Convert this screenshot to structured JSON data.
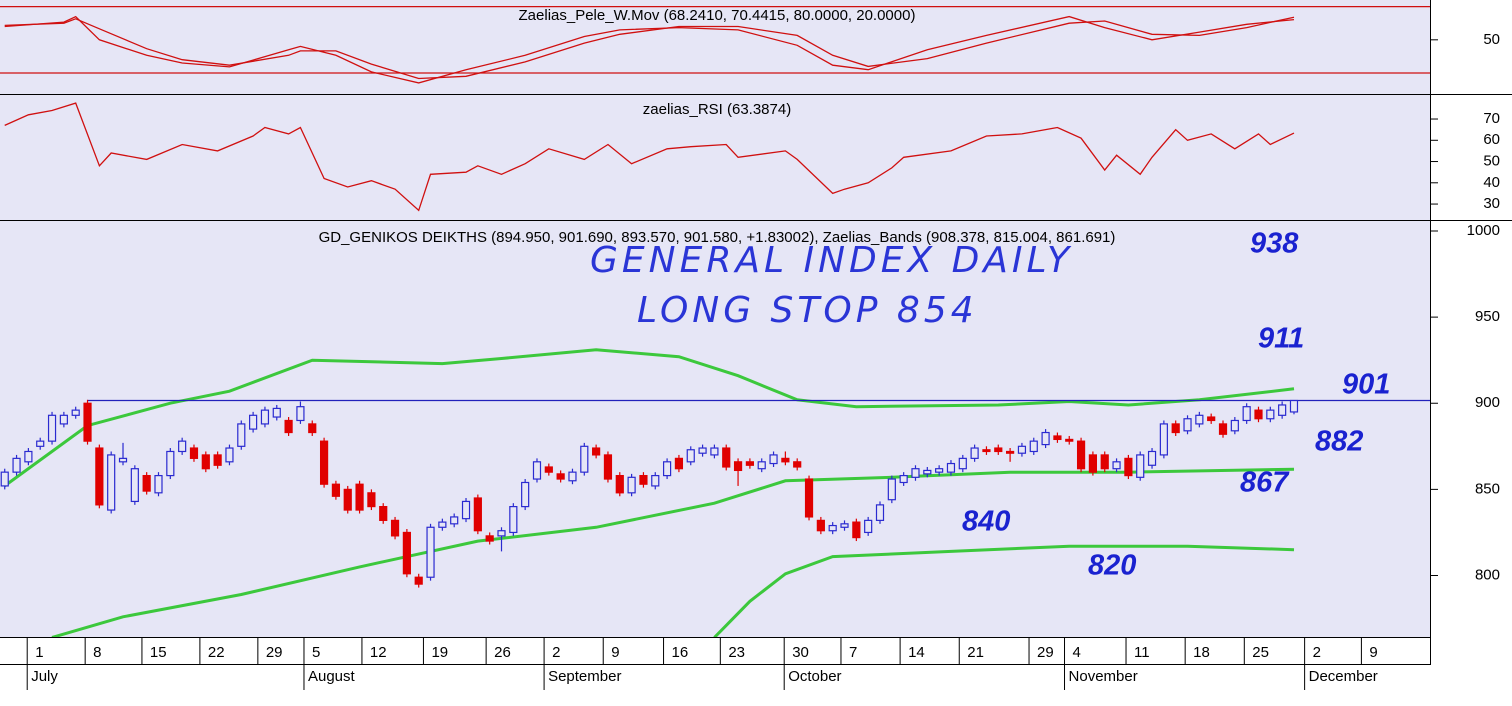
{
  "chart_data": [
    {
      "type": "line",
      "title": "Zaelias_Pele_W.Mov (68.2410, 70.4415, 80.0000, 20.0000)",
      "xlim": [
        -0.4,
        120.5
      ],
      "ylim": [
        1,
        86
      ],
      "yticks": [
        50
      ],
      "levels": [
        80,
        20
      ],
      "level_color": "#d01010",
      "series": [
        {
          "color": "#d01010",
          "x": [
            0,
            5,
            6,
            8,
            12,
            15,
            19,
            24,
            25,
            28,
            31,
            35,
            39,
            44,
            49,
            52,
            57,
            62,
            67,
            70,
            73,
            78,
            83,
            90,
            93,
            97,
            101,
            105,
            109
          ],
          "values": [
            62,
            66,
            71,
            50,
            36,
            29,
            25.5,
            41,
            44,
            36,
            21,
            11,
            23,
            36,
            53,
            59,
            61,
            59,
            45,
            27,
            23,
            41,
            54,
            71,
            61,
            50,
            57,
            64,
            68.241
          ]
        },
        {
          "color": "#d01010",
          "x": [
            0,
            5,
            6,
            8,
            12,
            15,
            19,
            24,
            25,
            28,
            31,
            35,
            39,
            44,
            49,
            52,
            57,
            62,
            67,
            70,
            73,
            78,
            83,
            90,
            93,
            97,
            101,
            105,
            109
          ],
          "values": [
            63,
            65,
            69,
            60,
            42,
            32,
            27,
            36,
            40,
            40,
            28,
            15,
            17,
            30,
            47,
            55,
            62,
            62,
            54,
            36,
            26,
            33,
            47,
            65,
            67,
            55,
            54,
            61,
            70.4415
          ]
        }
      ]
    },
    {
      "type": "line",
      "title": "zaelias_RSI (63.3874)",
      "xlim": [
        -0.4,
        120.5
      ],
      "ylim": [
        22.5,
        81.3
      ],
      "yticks": [
        30,
        40,
        50,
        60,
        70
      ],
      "series": [
        {
          "color": "#d01010",
          "x": [
            0,
            2,
            4,
            6,
            8,
            9,
            12,
            15,
            18,
            21,
            22,
            24,
            25,
            27,
            29,
            31,
            33,
            35,
            36,
            39,
            40,
            42,
            44,
            46,
            49,
            51,
            53,
            56,
            58,
            61,
            62,
            66,
            67,
            70,
            71,
            73,
            75,
            76,
            80,
            83,
            86,
            89,
            91,
            93,
            94,
            96,
            97,
            99,
            100,
            102,
            104,
            106,
            107,
            109
          ],
          "values": [
            67,
            72,
            74,
            77.5,
            48,
            54,
            51,
            58,
            55,
            62,
            66,
            63,
            66,
            42,
            38,
            41,
            37,
            27,
            44,
            45,
            48,
            44,
            49,
            56,
            51,
            58,
            49,
            56,
            57,
            58,
            52,
            55,
            51,
            35,
            37,
            40,
            47,
            52,
            55,
            62,
            63,
            66,
            61,
            46,
            53,
            44,
            52,
            65,
            60,
            63,
            56,
            63,
            58,
            63.3874
          ]
        }
      ]
    },
    {
      "type": "candlestick",
      "title": "GD_GENIKOS DEIKTHS (894.950, 901.690, 893.570, 901.580, +1.83002), Zaelias_Bands (908.378, 815.004, 861.691)",
      "xlim": [
        -0.4,
        120.5
      ],
      "ylim": [
        764.3,
        1005.8
      ],
      "yticks": [
        800,
        850,
        900,
        950,
        1000
      ],
      "up_color": "#2a2ad0",
      "down_color": "#e00000",
      "open": [
        852,
        860,
        866,
        875,
        878,
        888,
        893,
        900,
        874,
        838,
        866,
        843,
        858,
        848,
        858,
        872,
        874,
        870,
        870,
        866,
        875,
        885,
        888,
        892,
        890,
        890,
        888,
        878,
        853,
        850,
        853,
        848,
        840,
        832,
        825,
        799,
        799,
        828,
        830,
        833,
        845,
        823,
        823,
        825,
        840,
        856,
        863,
        859,
        855,
        860,
        874,
        870,
        858,
        848,
        858,
        852,
        858,
        868,
        866,
        871,
        870,
        874,
        866,
        866,
        862,
        865,
        868,
        866,
        856,
        832,
        826,
        828,
        831,
        825,
        832,
        844,
        854,
        857,
        859,
        860,
        860,
        862,
        868,
        873,
        874,
        872,
        871,
        872,
        876,
        881,
        879,
        878,
        870,
        870,
        862,
        868,
        857,
        864,
        870,
        888,
        884,
        888,
        892,
        888,
        884,
        890,
        896,
        891,
        893,
        894.95
      ],
      "high": [
        862,
        870,
        874,
        880,
        895,
        895,
        898,
        902,
        876,
        872,
        877,
        864,
        860,
        860,
        874,
        880,
        876,
        872,
        872,
        876,
        890,
        895,
        898,
        899,
        892,
        901,
        890,
        880,
        855,
        852,
        855,
        850,
        842,
        834,
        827,
        801,
        830,
        833,
        836,
        845,
        847,
        825,
        828,
        842,
        856,
        868,
        865,
        861,
        862,
        877,
        876,
        872,
        860,
        859,
        860,
        860,
        868,
        870,
        875,
        876,
        876,
        876,
        868,
        868,
        868,
        872,
        872,
        868,
        858,
        834,
        831,
        832,
        833,
        834,
        843,
        858,
        860,
        864,
        863,
        864,
        867,
        870,
        876,
        875,
        876,
        874,
        877,
        880,
        885,
        883,
        881,
        880,
        872,
        872,
        868,
        870,
        872,
        874,
        890,
        890,
        893,
        895,
        894,
        890,
        892,
        900,
        898,
        898,
        901,
        901.69
      ],
      "low": [
        850,
        858,
        864,
        873,
        876,
        886,
        891,
        876,
        839,
        836,
        864,
        841,
        847,
        846,
        856,
        870,
        866,
        860,
        862,
        864,
        873,
        883,
        886,
        890,
        881,
        888,
        881,
        851,
        844,
        836,
        836,
        838,
        830,
        821,
        799,
        793,
        797,
        826,
        828,
        831,
        824,
        818,
        814,
        823,
        838,
        854,
        858,
        854,
        853,
        858,
        868,
        854,
        846,
        846,
        851,
        850,
        856,
        860,
        864,
        869,
        868,
        861,
        852,
        862,
        860,
        863,
        864,
        861,
        832,
        824,
        824,
        826,
        820,
        823,
        830,
        842,
        852,
        855,
        857,
        858,
        858,
        860,
        866,
        870,
        870,
        866,
        869,
        870,
        874,
        877,
        876,
        860,
        858,
        860,
        860,
        856,
        855,
        862,
        868,
        881,
        882,
        886,
        888,
        880,
        882,
        888,
        889,
        889,
        891,
        893.57
      ],
      "close": [
        860,
        868,
        872,
        878,
        893,
        893,
        896,
        878,
        841,
        870,
        868,
        862,
        849,
        858,
        872,
        878,
        868,
        862,
        864,
        874,
        888,
        893,
        896,
        897,
        883,
        898,
        883,
        853,
        846,
        838,
        838,
        840,
        832,
        823,
        801,
        795,
        828,
        831,
        834,
        843,
        826,
        820,
        826,
        840,
        854,
        866,
        860,
        856,
        860,
        875,
        870,
        856,
        848,
        857,
        853,
        858,
        866,
        862,
        873,
        874,
        874,
        863,
        861,
        864,
        866,
        870,
        866,
        863,
        834,
        826,
        829,
        830,
        822,
        832,
        841,
        856,
        858,
        862,
        861,
        862,
        865,
        868,
        874,
        872,
        872,
        871,
        875,
        878,
        883,
        879,
        878,
        862,
        860,
        862,
        866,
        858,
        870,
        872,
        888,
        883,
        891,
        893,
        890,
        882,
        890,
        898,
        891,
        896,
        899,
        901.58
      ],
      "bands": [
        {
          "color": "#3cc83c",
          "x": [
            0,
            7,
            14,
            19,
            26,
            37,
            42,
            50,
            57,
            62,
            67,
            72,
            84,
            90,
            95,
            101,
            109
          ],
          "values": [
            852,
            887,
            900,
            907,
            925,
            923,
            926,
            931,
            927,
            916,
            902,
            898,
            899,
            901,
            899,
            902,
            908.378
          ]
        },
        {
          "color": "#3cc83c",
          "x": [
            4,
            10,
            20,
            30,
            40,
            50,
            60,
            66,
            75,
            85,
            95,
            109
          ],
          "values": [
            764,
            776,
            789,
            805,
            820,
            828,
            842,
            855,
            857,
            860,
            860,
            861.691
          ]
        },
        {
          "color": "#3cc83c",
          "x": [
            60,
            63,
            66,
            70,
            80,
            90,
            100,
            109
          ],
          "values": [
            764,
            785,
            801,
            811,
            814,
            817,
            817,
            815.004
          ]
        }
      ],
      "hline": {
        "value": 901.58,
        "from": 7,
        "color": "#2222bb"
      },
      "annotations": [
        "GENERAL INDEX DAILY",
        "LONG STOP 854"
      ],
      "level_labels": [
        938,
        911,
        901,
        882,
        867,
        840,
        820
      ],
      "xticks": [
        {
          "value": 1.9,
          "label": "1"
        },
        {
          "value": 6.8,
          "label": "8"
        },
        {
          "value": 11.6,
          "label": "15"
        },
        {
          "value": 16.5,
          "label": "22"
        },
        {
          "value": 21.4,
          "label": "29"
        },
        {
          "value": 25.3,
          "label": "5"
        },
        {
          "value": 30.2,
          "label": "12"
        },
        {
          "value": 35.4,
          "label": "19"
        },
        {
          "value": 40.7,
          "label": "26"
        },
        {
          "value": 45.6,
          "label": "2"
        },
        {
          "value": 50.6,
          "label": "9"
        },
        {
          "value": 55.7,
          "label": "16"
        },
        {
          "value": 60.5,
          "label": "23"
        },
        {
          "value": 65.9,
          "label": "30"
        },
        {
          "value": 70.7,
          "label": "7"
        },
        {
          "value": 75.7,
          "label": "14"
        },
        {
          "value": 80.7,
          "label": "21"
        },
        {
          "value": 86.6,
          "label": "29"
        },
        {
          "value": 89.6,
          "label": "4"
        },
        {
          "value": 94.8,
          "label": "11"
        },
        {
          "value": 99.8,
          "label": "18"
        },
        {
          "value": 104.8,
          "label": "25"
        },
        {
          "value": 109.9,
          "label": "2"
        },
        {
          "value": 114.7,
          "label": "9"
        }
      ],
      "month_ticks": [
        {
          "value": 1.9,
          "label": "July"
        },
        {
          "value": 25.3,
          "label": "August"
        },
        {
          "value": 45.6,
          "label": "September"
        },
        {
          "value": 65.9,
          "label": "October"
        },
        {
          "value": 89.6,
          "label": "November"
        },
        {
          "value": 109.9,
          "label": "December"
        }
      ]
    }
  ]
}
